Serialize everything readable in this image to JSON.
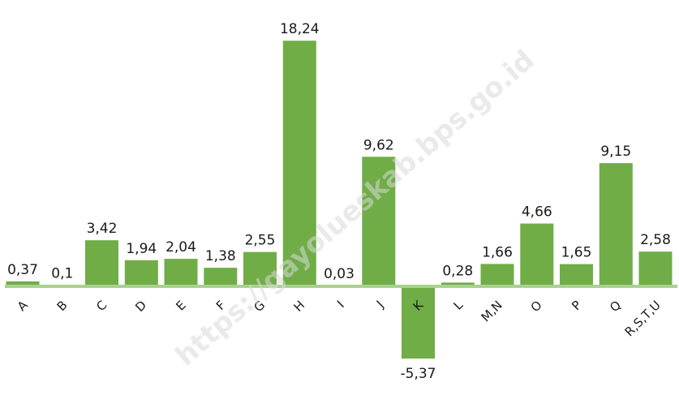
{
  "chart_data": {
    "type": "bar",
    "categories": [
      "A",
      "B",
      "C",
      "D",
      "E",
      "F",
      "G",
      "H",
      "I",
      "J",
      "K",
      "L",
      "M,N",
      "O",
      "P",
      "Q",
      "R,S,T,U"
    ],
    "values": [
      0.37,
      0.1,
      3.42,
      1.94,
      2.04,
      1.38,
      2.55,
      18.24,
      0.03,
      9.62,
      -5.37,
      0.28,
      1.66,
      4.66,
      1.65,
      9.15,
      2.58
    ],
    "value_labels": [
      "0,37",
      "0,1",
      "3,42",
      "1,94",
      "2,04",
      "1,38",
      "2,55",
      "18,24",
      "0,03",
      "9,62",
      "-5,37",
      "0,28",
      "1,66",
      "4,66",
      "1,65",
      "9,15",
      "2,58"
    ],
    "title": "",
    "xlabel": "",
    "ylabel": "",
    "grid": false,
    "legend": "none",
    "bar_color": "#70ad47",
    "baseline_color": "#a9d18e"
  },
  "watermark": "https://gayolueskab.bps.go.id"
}
